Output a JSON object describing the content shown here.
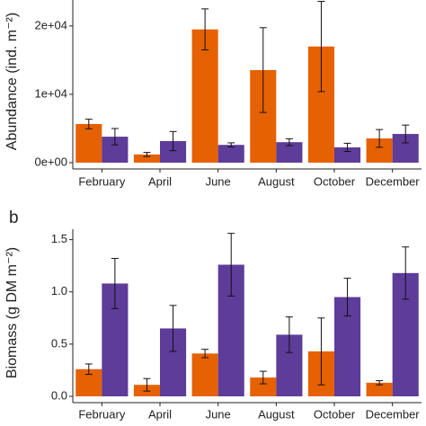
{
  "chart_data": [
    {
      "type": "bar",
      "y_label": "Abundance (ind. m⁻²)",
      "categories": [
        "February",
        "April",
        "June",
        "August",
        "October",
        "December"
      ],
      "ylim": [
        0,
        23800
      ],
      "yticks": [
        {
          "value": 0,
          "label": "0e+00"
        },
        {
          "value": 10000,
          "label": "1e+04"
        },
        {
          "value": 20000,
          "label": "2e+04"
        }
      ],
      "series": [
        {
          "color": "#e66101",
          "values": [
            5660,
            1200,
            19500,
            13550,
            17000,
            3550
          ],
          "errors": [
            700,
            300,
            3000,
            6200,
            6600,
            1300
          ]
        },
        {
          "color": "#5e3c99",
          "values": [
            3800,
            3160,
            2600,
            3000,
            2240,
            4200
          ],
          "errors": [
            1200,
            1400,
            300,
            500,
            600,
            1300
          ]
        }
      ]
    },
    {
      "type": "bar",
      "panel_label": "b",
      "y_label": "Biomass (g DM m⁻²)",
      "categories": [
        "February",
        "April",
        "June",
        "August",
        "October",
        "December"
      ],
      "ylim": [
        0,
        1.6
      ],
      "yticks": [
        {
          "value": 0,
          "label": "0.0"
        },
        {
          "value": 0.5,
          "label": "0.5"
        },
        {
          "value": 1,
          "label": "1.0"
        },
        {
          "value": 1.5,
          "label": "1.5"
        }
      ],
      "series": [
        {
          "color": "#e66101",
          "values": [
            0.26,
            0.11,
            0.41,
            0.18,
            0.43,
            0.13
          ],
          "errors": [
            0.05,
            0.06,
            0.04,
            0.06,
            0.32,
            0.02
          ]
        },
        {
          "color": "#5e3c99",
          "values": [
            1.08,
            0.65,
            1.26,
            0.59,
            0.95,
            1.18
          ],
          "errors": [
            0.24,
            0.22,
            0.3,
            0.17,
            0.18,
            0.25
          ]
        }
      ]
    }
  ]
}
